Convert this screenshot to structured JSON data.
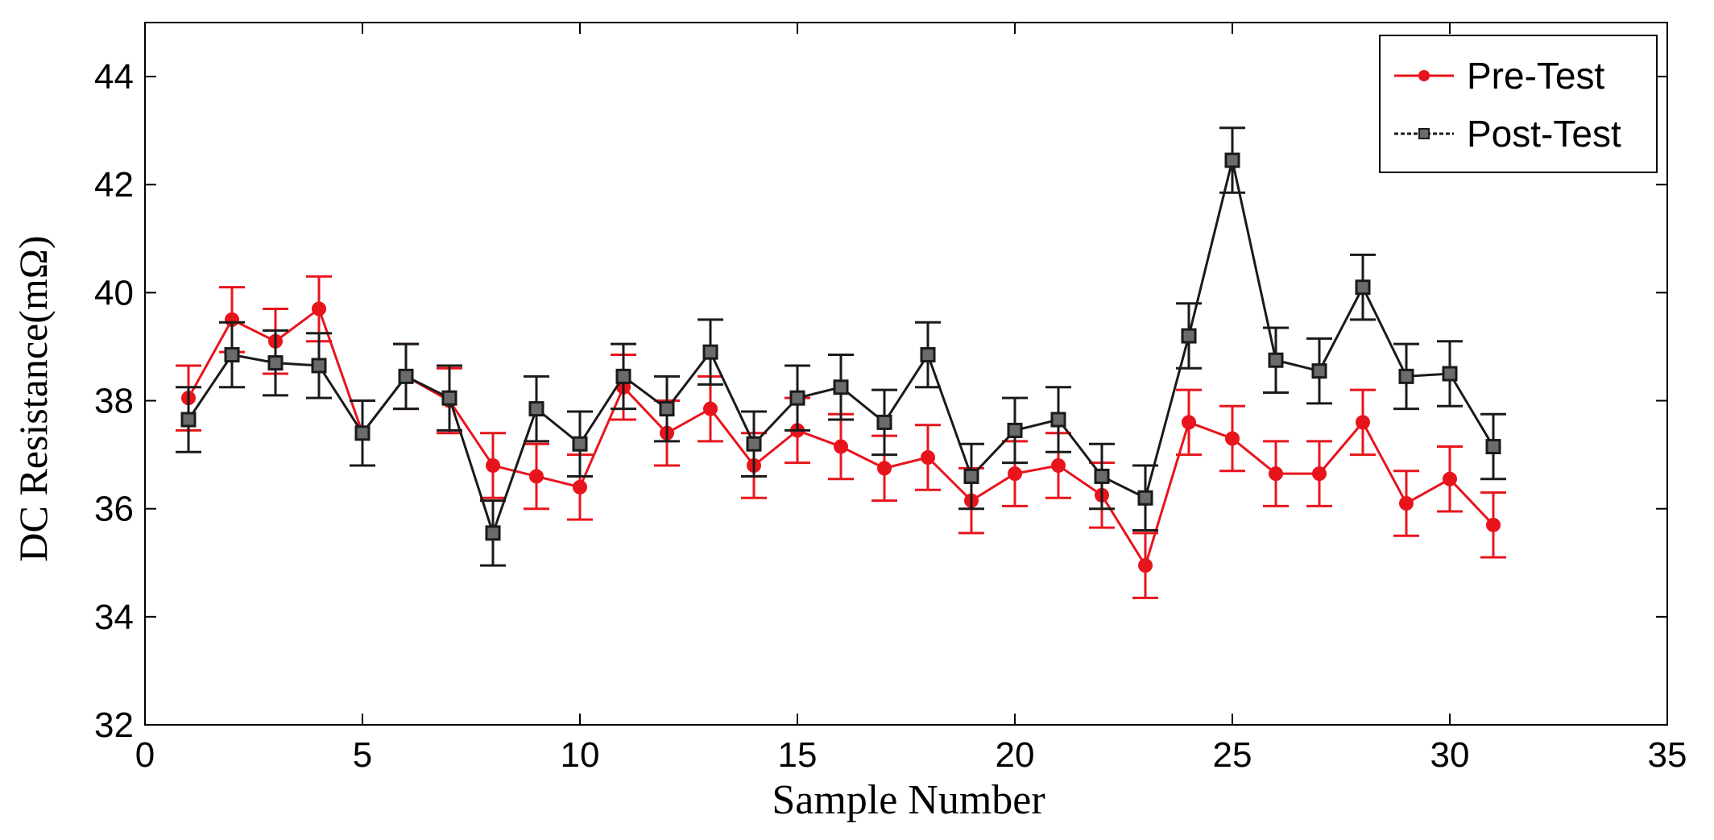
{
  "chart_data": {
    "type": "line",
    "title": "",
    "xlabel": "Sample Number",
    "ylabel": "DC Resistance(mΩ)",
    "xlim": [
      0,
      35
    ],
    "ylim": [
      32,
      45
    ],
    "xticks": [
      0,
      5,
      10,
      15,
      20,
      25,
      30,
      35
    ],
    "yticks": [
      32,
      34,
      36,
      38,
      40,
      42,
      44
    ],
    "grid": false,
    "legend_position": "top-right",
    "error_bar": 0.6,
    "x": [
      1,
      2,
      3,
      4,
      5,
      6,
      7,
      8,
      9,
      10,
      11,
      12,
      13,
      14,
      15,
      16,
      17,
      18,
      19,
      20,
      21,
      22,
      23,
      24,
      25,
      26,
      27,
      28,
      29,
      30,
      31
    ],
    "series": [
      {
        "name": "Pre-Test",
        "color": "#e8141c",
        "marker": "circle",
        "values": [
          38.05,
          39.5,
          39.1,
          39.7,
          37.4,
          38.45,
          38.0,
          36.8,
          36.6,
          36.4,
          38.25,
          37.4,
          37.85,
          36.8,
          37.45,
          37.15,
          36.75,
          36.95,
          36.15,
          36.65,
          36.8,
          36.25,
          34.95,
          37.6,
          37.3,
          36.65,
          36.65,
          37.6,
          36.1,
          36.55,
          35.7
        ]
      },
      {
        "name": "Post-Test",
        "color": "#1a1a1a",
        "marker": "square",
        "values": [
          37.65,
          38.85,
          38.7,
          38.65,
          37.4,
          38.45,
          38.05,
          35.55,
          37.85,
          37.2,
          38.45,
          37.85,
          38.9,
          37.2,
          38.05,
          38.25,
          37.6,
          38.85,
          36.6,
          37.45,
          37.65,
          36.6,
          36.2,
          39.2,
          42.45,
          38.75,
          38.55,
          40.1,
          38.45,
          38.5,
          37.15
        ]
      }
    ]
  }
}
